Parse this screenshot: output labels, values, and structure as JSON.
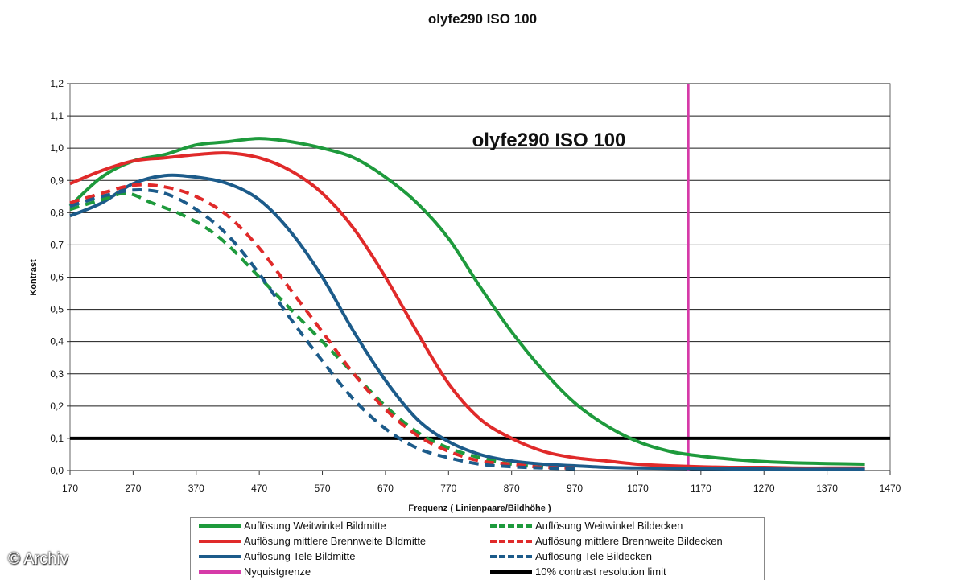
{
  "page": {
    "title": "olyfe290 ISO 100",
    "watermark": "© Archiv"
  },
  "chart_data": {
    "type": "line",
    "title": "olyfe290 ISO 100",
    "inner_title": "olyfe290 ISO 100",
    "xlabel": "Frequenz ( Linienpaare/Bildhöhe )",
    "ylabel": "Kontrast",
    "xlim": [
      170,
      1470
    ],
    "ylim": [
      0,
      1.2
    ],
    "xticks": [
      170,
      270,
      370,
      470,
      570,
      670,
      770,
      870,
      970,
      1070,
      1170,
      1270,
      1370,
      1470
    ],
    "yticks": [
      "0,0",
      "0,1",
      "0,2",
      "0,3",
      "0,4",
      "0,5",
      "0,6",
      "0,7",
      "0,8",
      "0,9",
      "1,0",
      "1,1",
      "1,2"
    ],
    "grid": "horizontal",
    "legend_position": "bottom",
    "series": [
      {
        "name": "Auflösung Weitwinkel Bildmitte",
        "color": "#1e9a3c",
        "style": "solid",
        "x": [
          170,
          220,
          270,
          320,
          370,
          420,
          470,
          520,
          570,
          620,
          670,
          720,
          770,
          820,
          870,
          920,
          970,
          1020,
          1070,
          1120,
          1170,
          1220,
          1270,
          1320,
          1370,
          1430
        ],
        "y": [
          0.82,
          0.91,
          0.96,
          0.98,
          1.01,
          1.02,
          1.03,
          1.02,
          1.0,
          0.97,
          0.91,
          0.83,
          0.72,
          0.57,
          0.43,
          0.31,
          0.21,
          0.14,
          0.09,
          0.06,
          0.045,
          0.035,
          0.028,
          0.024,
          0.022,
          0.02
        ]
      },
      {
        "name": "Auflösung mittlere Brennweite Bildmitte",
        "color": "#e02a2a",
        "style": "solid",
        "x": [
          170,
          220,
          270,
          320,
          370,
          420,
          470,
          520,
          570,
          620,
          670,
          720,
          770,
          820,
          870,
          920,
          970,
          1020,
          1070,
          1120,
          1170,
          1220,
          1270,
          1320,
          1370,
          1430
        ],
        "y": [
          0.89,
          0.93,
          0.96,
          0.97,
          0.98,
          0.985,
          0.97,
          0.93,
          0.86,
          0.75,
          0.6,
          0.43,
          0.27,
          0.16,
          0.1,
          0.06,
          0.04,
          0.03,
          0.02,
          0.015,
          0.012,
          0.01,
          0.01,
          0.008,
          0.008,
          0.008
        ]
      },
      {
        "name": "Auflösung Tele Bildmitte",
        "color": "#1c5b8a",
        "style": "solid",
        "x": [
          170,
          220,
          270,
          320,
          370,
          420,
          470,
          520,
          570,
          620,
          670,
          720,
          770,
          820,
          870,
          920,
          970,
          1020,
          1070,
          1120,
          1170,
          1220,
          1270,
          1320,
          1370,
          1430
        ],
        "y": [
          0.79,
          0.83,
          0.89,
          0.915,
          0.91,
          0.89,
          0.84,
          0.74,
          0.6,
          0.43,
          0.28,
          0.16,
          0.09,
          0.05,
          0.03,
          0.02,
          0.015,
          0.01,
          0.008,
          0.007,
          0.006,
          0.005,
          0.005,
          0.004,
          0.004,
          0.004
        ]
      },
      {
        "name": "Auflösung Weitwinkel Bildecken",
        "color": "#1e9a3c",
        "style": "dashed",
        "x": [
          170,
          220,
          260,
          300,
          340,
          380,
          420,
          470,
          520,
          570,
          620,
          670,
          720,
          770,
          820,
          870,
          920
        ],
        "y": [
          0.81,
          0.84,
          0.86,
          0.83,
          0.8,
          0.76,
          0.7,
          0.6,
          0.5,
          0.4,
          0.3,
          0.2,
          0.12,
          0.07,
          0.04,
          0.02,
          0.01
        ]
      },
      {
        "name": "Auflösung mittlere Brennweite Bildecken",
        "color": "#e02a2a",
        "style": "dashed",
        "x": [
          170,
          220,
          270,
          320,
          370,
          420,
          470,
          520,
          570,
          620,
          670,
          720,
          770,
          820,
          870,
          920,
          970
        ],
        "y": [
          0.83,
          0.86,
          0.885,
          0.88,
          0.85,
          0.79,
          0.69,
          0.56,
          0.43,
          0.3,
          0.19,
          0.11,
          0.06,
          0.03,
          0.02,
          0.01,
          0.008
        ]
      },
      {
        "name": "Auflösung Tele Bildecken",
        "color": "#1c5b8a",
        "style": "dashed",
        "x": [
          170,
          220,
          270,
          320,
          370,
          420,
          470,
          520,
          570,
          620,
          670,
          720,
          770,
          820,
          870,
          920,
          970
        ],
        "y": [
          0.82,
          0.85,
          0.87,
          0.86,
          0.81,
          0.73,
          0.61,
          0.47,
          0.34,
          0.22,
          0.13,
          0.07,
          0.04,
          0.02,
          0.012,
          0.008,
          0.006
        ]
      },
      {
        "name": "Nyquistgrenze",
        "color": "#d63aa8",
        "style": "vertical",
        "x": 1150
      },
      {
        "name": "10% contrast resolution limit",
        "color": "#000000",
        "style": "horizontal",
        "y": 0.1
      }
    ]
  }
}
